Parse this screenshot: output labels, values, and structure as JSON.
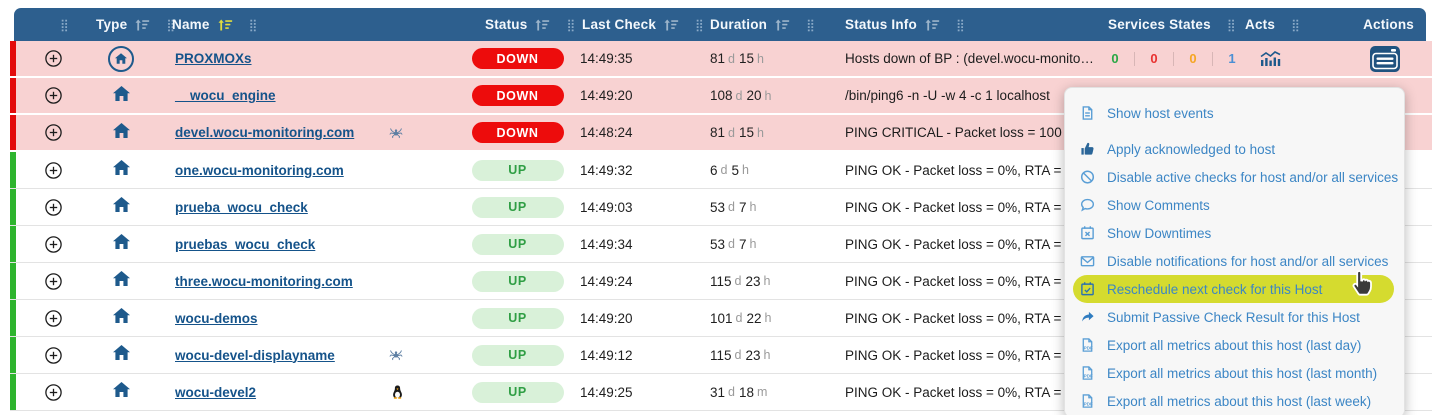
{
  "colors": {
    "header-bg": "#2d5f8e",
    "header-text": "#f4f8fc",
    "sort-inactive": "#9cb4ca",
    "sort-active": "#e0dd3e",
    "row-down-bg": "#f8d2d2",
    "row-up-bg": "#ffffff",
    "bar-down": "#e30b0b",
    "bar-up": "#2eb42e",
    "badge-down-bg": "#ed0c0c",
    "badge-down-text": "#ffffff",
    "badge-up-bg": "#d9f1d9",
    "badge-up-text": "#2f9e44",
    "name-link": "#15538a",
    "menu-bg": "#f7f7f7",
    "menu-link": "#3c86c5",
    "menu-highlight": "#d5db2f",
    "icon-navy": "#1e5a8c",
    "svc-ok": "#2aa845",
    "svc-critical": "#e8312f",
    "svc-warning": "#f5a623",
    "svc-unknown": "#4b8fd4"
  },
  "header": {
    "columns": [
      {
        "key": "lead",
        "label": "",
        "sort": null,
        "drag": true
      },
      {
        "key": "type",
        "label": "Type",
        "sort": "inactive",
        "drag": true
      },
      {
        "key": "name",
        "label": "Name",
        "sort": "active",
        "drag": true
      },
      {
        "key": "status",
        "label": "Status",
        "sort": "inactive",
        "drag": true
      },
      {
        "key": "last",
        "label": "Last Check",
        "sort": "inactive",
        "drag": true
      },
      {
        "key": "duration",
        "label": "Duration",
        "sort": "inactive",
        "drag": true
      },
      {
        "key": "info",
        "label": "Status Info",
        "sort": "inactive",
        "drag": true
      },
      {
        "key": "services",
        "label": "Services States",
        "sort": null,
        "drag": true
      },
      {
        "key": "acts",
        "label": "Acts",
        "sort": null,
        "drag": true
      },
      {
        "key": "actions",
        "label": "Actions",
        "sort": null,
        "drag": false
      }
    ]
  },
  "rows": [
    {
      "name": "PROXMOXs",
      "type_icon": "home-circle",
      "name_icon": null,
      "status": "DOWN",
      "last_check": "14:49:35",
      "duration": "81 d 15 h",
      "status_info": "Hosts down of BP : (devel.wocu-monito…",
      "services_states": {
        "ok": 0,
        "critical": 0,
        "warning": 0,
        "unknown": 1
      },
      "acts_chart": true,
      "actions_button": true
    },
    {
      "name": "__wocu_engine",
      "type_icon": "home",
      "name_icon": null,
      "status": "DOWN",
      "last_check": "14:49:20",
      "duration": "108 d 20 h",
      "status_info": "/bin/ping6 -n -U -w 4 -c 1 localhost",
      "services_states": null,
      "acts_chart": false,
      "actions_button": false
    },
    {
      "name": "devel.wocu-monitoring.com",
      "type_icon": "home",
      "name_icon": "spider",
      "status": "DOWN",
      "last_check": "14:48:24",
      "duration": "81 d 15 h",
      "status_info": "PING CRITICAL - Packet loss = 100",
      "services_states": null,
      "acts_chart": false,
      "actions_button": false
    },
    {
      "name": "one.wocu-monitoring.com",
      "type_icon": "home",
      "name_icon": null,
      "status": "UP",
      "last_check": "14:49:32",
      "duration": "6 d 5 h",
      "status_info": "PING OK - Packet loss = 0%, RTA =",
      "services_states": null,
      "acts_chart": false,
      "actions_button": false
    },
    {
      "name": "prueba_wocu_check",
      "type_icon": "home",
      "name_icon": null,
      "status": "UP",
      "last_check": "14:49:03",
      "duration": "53 d 7 h",
      "status_info": "PING OK - Packet loss = 0%, RTA =",
      "services_states": null,
      "acts_chart": false,
      "actions_button": false
    },
    {
      "name": "pruebas_wocu_check",
      "type_icon": "home",
      "name_icon": null,
      "status": "UP",
      "last_check": "14:49:34",
      "duration": "53 d 7 h",
      "status_info": "PING OK - Packet loss = 0%, RTA =",
      "services_states": null,
      "acts_chart": false,
      "actions_button": false
    },
    {
      "name": "three.wocu-monitoring.com",
      "type_icon": "home",
      "name_icon": null,
      "status": "UP",
      "last_check": "14:49:24",
      "duration": "115 d 23 h",
      "status_info": "PING OK - Packet loss = 0%, RTA =",
      "services_states": null,
      "acts_chart": false,
      "actions_button": false
    },
    {
      "name": "wocu-demos",
      "type_icon": "home",
      "name_icon": null,
      "status": "UP",
      "last_check": "14:49:20",
      "duration": "101 d 22 h",
      "status_info": "PING OK - Packet loss = 0%, RTA =",
      "services_states": null,
      "acts_chart": false,
      "actions_button": false
    },
    {
      "name": "wocu-devel-displayname",
      "type_icon": "home",
      "name_icon": "spider",
      "status": "UP",
      "last_check": "14:49:12",
      "duration": "115 d 23 h",
      "status_info": "PING OK - Packet loss = 0%, RTA =",
      "services_states": null,
      "acts_chart": false,
      "actions_button": false
    },
    {
      "name": "wocu-devel2",
      "type_icon": "home",
      "name_icon": "tux",
      "status": "UP",
      "last_check": "14:49:25",
      "duration": "31 d 18 m",
      "status_info": "PING OK - Packet loss = 0%, RTA =",
      "services_states": null,
      "acts_chart": false,
      "actions_button": false
    }
  ],
  "context_menu": {
    "items": [
      {
        "key": "show-host-events",
        "label": "Show host events",
        "icon": "file",
        "highlighted": false
      },
      {
        "key": "apply-acknowledged",
        "label": "Apply acknowledged to host",
        "icon": "thumbs-up",
        "highlighted": false
      },
      {
        "key": "disable-active-checks",
        "label": "Disable active checks for host and/or all services",
        "icon": "ban",
        "highlighted": false
      },
      {
        "key": "show-comments",
        "label": "Show Comments",
        "icon": "comment",
        "highlighted": false
      },
      {
        "key": "show-downtimes",
        "label": "Show Downtimes",
        "icon": "calendar-x",
        "highlighted": false
      },
      {
        "key": "disable-notifications",
        "label": "Disable notifications for host and/or all services",
        "icon": "envelope",
        "highlighted": false
      },
      {
        "key": "reschedule-next-check",
        "label": "Reschedule next check for this Host",
        "icon": "calendar-check",
        "highlighted": true
      },
      {
        "key": "submit-passive-check",
        "label": "Submit Passive Check Result for this Host",
        "icon": "share",
        "highlighted": false
      },
      {
        "key": "export-metrics-last-day",
        "label": "Export all metrics about this host (last day)",
        "icon": "pdf",
        "highlighted": false
      },
      {
        "key": "export-metrics-last-month",
        "label": "Export all metrics about this host (last month)",
        "icon": "pdf",
        "highlighted": false
      },
      {
        "key": "export-metrics-last-week",
        "label": "Export all metrics about this host (last week)",
        "icon": "pdf",
        "highlighted": false
      }
    ]
  }
}
